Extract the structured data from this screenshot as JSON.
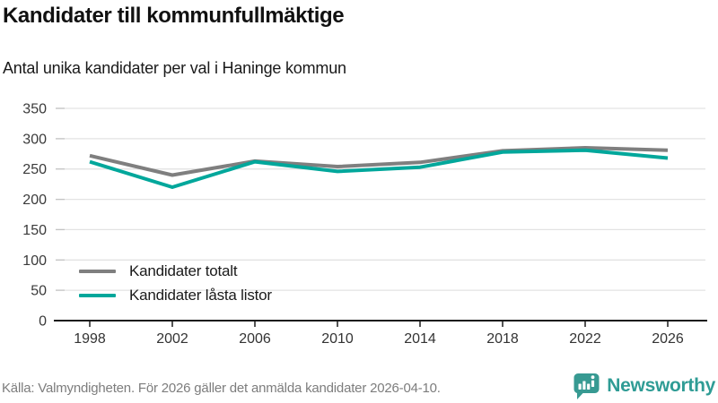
{
  "header": {
    "title": "Kandidater till kommunfullmäktige",
    "subtitle": "Antal unika kandidater per val i Haninge kommun"
  },
  "chart_data": {
    "type": "line",
    "x": [
      1998,
      2002,
      2006,
      2010,
      2014,
      2018,
      2022,
      2026
    ],
    "series": [
      {
        "name": "Kandidater totalt",
        "color": "#7f7f7f",
        "values": [
          272,
          240,
          263,
          254,
          261,
          280,
          285,
          281
        ]
      },
      {
        "name": "Kandidater låsta listor",
        "color": "#00a79b",
        "values": [
          262,
          220,
          262,
          246,
          253,
          278,
          281,
          268
        ]
      }
    ],
    "ylim": [
      0,
      350
    ],
    "yticks": [
      0,
      50,
      100,
      150,
      200,
      250,
      300,
      350
    ],
    "grid": true,
    "legend_position": "inside-bottom-left",
    "title": "Kandidater till kommunfullmäktige",
    "xlabel": "",
    "ylabel": ""
  },
  "footer": {
    "source": "Källa: Valmyndigheten. För 2026 gäller det anmälda kandidater 2026-04-10.",
    "brand": "Newsworthy",
    "brand_color": "#2f9c95",
    "badge_color": "#379a92"
  }
}
